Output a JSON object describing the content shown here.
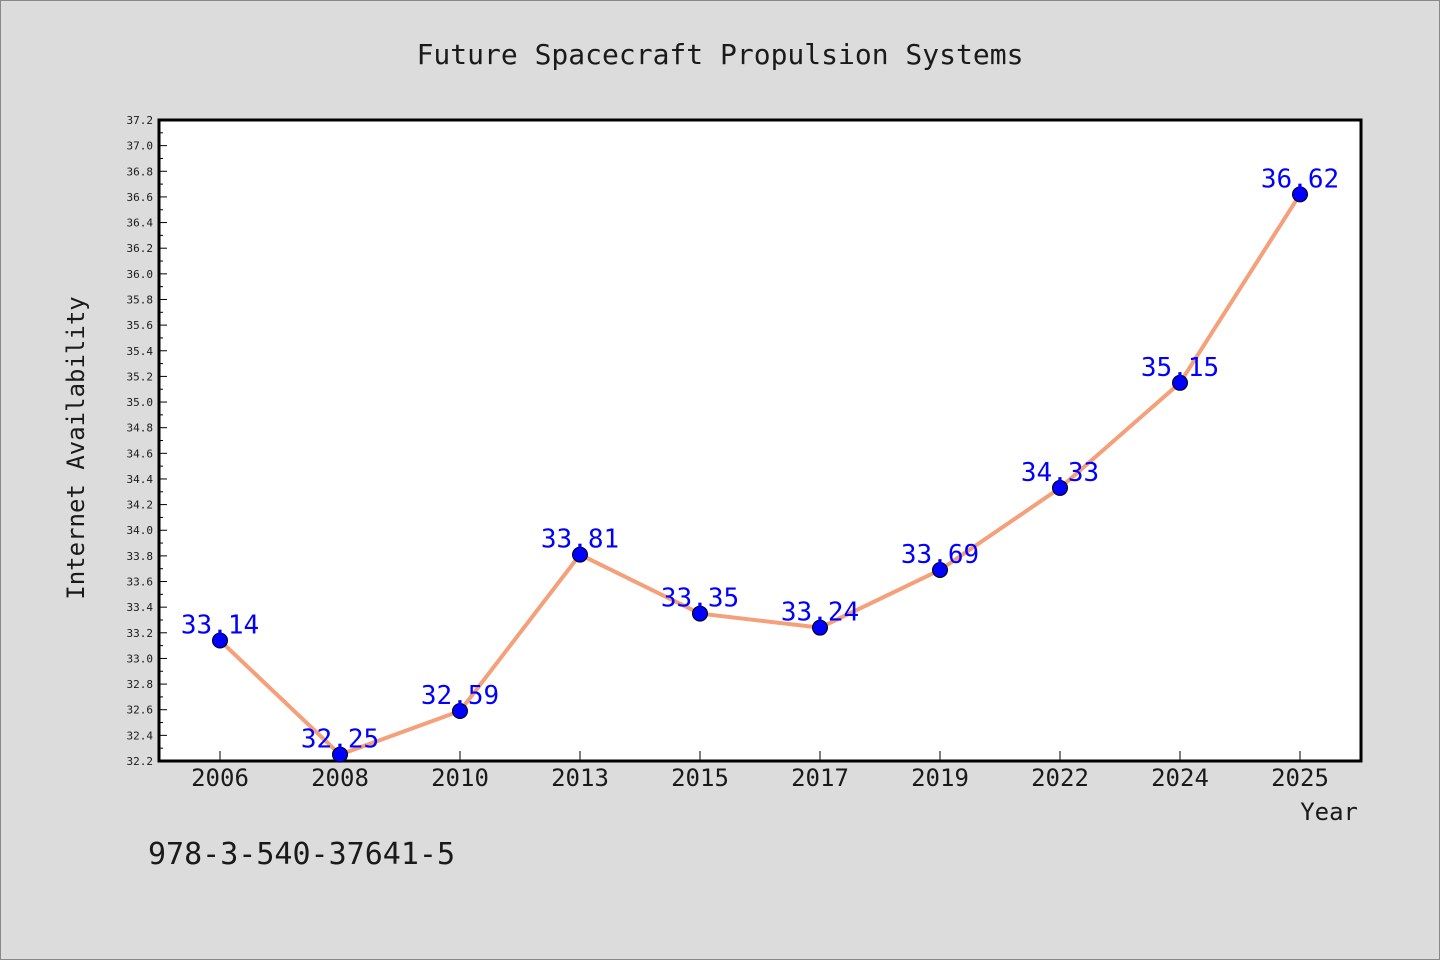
{
  "chart_data": {
    "type": "line",
    "title": "Future Spacecraft Propulsion Systems",
    "xlabel": "Year",
    "ylabel": "Internet Availability",
    "categories": [
      "2006",
      "2008",
      "2010",
      "2013",
      "2015",
      "2017",
      "2019",
      "2022",
      "2024",
      "2025"
    ],
    "series": [
      {
        "values": [
          33.14,
          32.25,
          32.59,
          33.81,
          33.35,
          33.24,
          33.69,
          34.33,
          35.15,
          36.62
        ],
        "line_color": "#f4a07a",
        "marker_color": "#0000ff"
      }
    ],
    "data_labels": [
      "33.14",
      "32.25",
      "32.59",
      "33.81",
      "33.35",
      "33.24",
      "33.69",
      "34.33",
      "35.15",
      "36.62"
    ],
    "ylim": [
      32.2,
      37.2
    ],
    "ytick_step": 0.2,
    "grid": false,
    "label_color": "#0000ff"
  },
  "footer": {
    "isbn": "978-3-540-37641-5"
  },
  "colors": {
    "background": "#dcdcdc",
    "plot_area": "#ffffff",
    "axis": "#000000"
  }
}
